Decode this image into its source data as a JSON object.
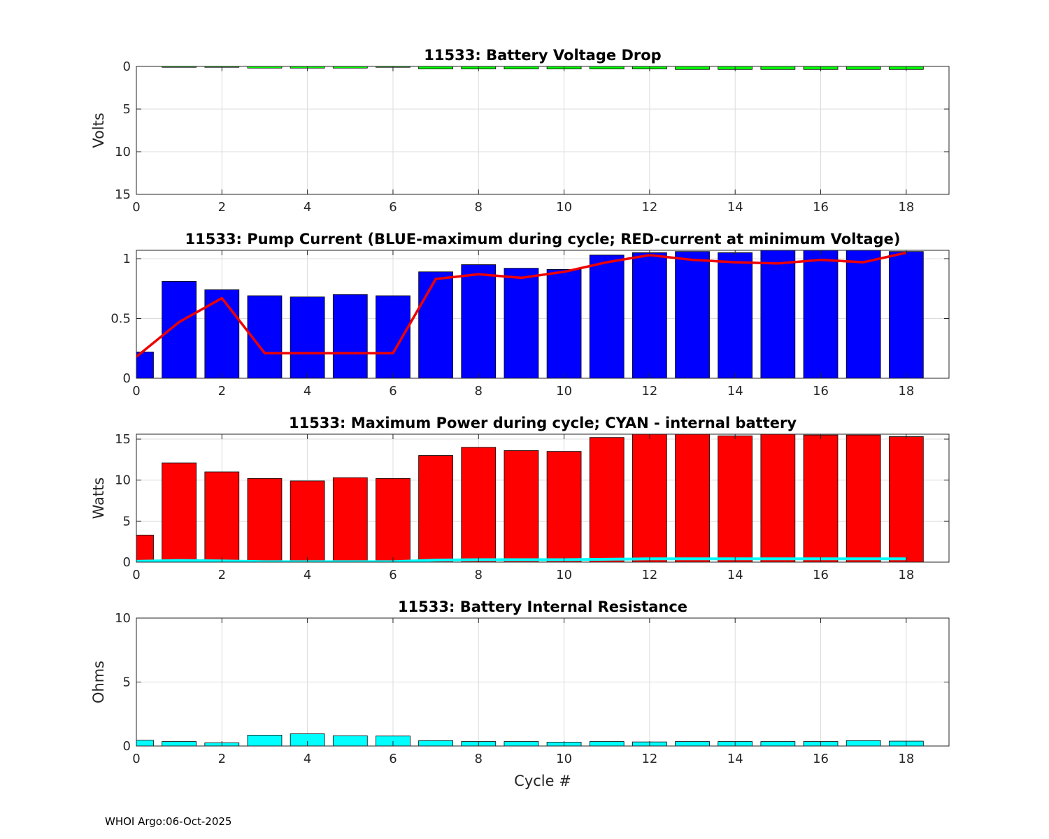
{
  "footer": "WHOI Argo:06-Oct-2025",
  "colors": {
    "green": "#00ff00",
    "blue": "#0000ff",
    "red": "#ff0000",
    "cyan": "#00ffff",
    "line_red": "#ee0000",
    "grid": "#dcdcdc",
    "edge": "#000000"
  },
  "chart_data": [
    {
      "id": "voltage",
      "type": "bar",
      "title": "11533: Battery Voltage Drop",
      "xlabel": "",
      "ylabel": "Volts",
      "xlim": [
        0,
        19
      ],
      "ylim": [
        0,
        15
      ],
      "y_reversed": true,
      "grid": true,
      "xticks": [
        "0",
        "2",
        "4",
        "6",
        "8",
        "10",
        "12",
        "14",
        "16",
        "18"
      ],
      "yticks": [
        "0",
        "5",
        "10",
        "15"
      ],
      "x": [
        0,
        1,
        2,
        3,
        4,
        5,
        6,
        7,
        8,
        9,
        10,
        11,
        12,
        13,
        14,
        15,
        16,
        17,
        18
      ],
      "series": [
        {
          "name": "Voltage drop",
          "color": "green",
          "values": [
            0,
            0.1,
            0.1,
            0.2,
            0.2,
            0.2,
            0.1,
            0.3,
            0.3,
            0.3,
            0.3,
            0.3,
            0.3,
            0.35,
            0.35,
            0.35,
            0.35,
            0.35,
            0.35
          ]
        }
      ]
    },
    {
      "id": "current",
      "type": "bar",
      "title": "11533: Pump Current (BLUE-maximum during cycle; RED-current at minimum Voltage)",
      "xlabel": "",
      "ylabel": "",
      "xlim": [
        0,
        19
      ],
      "ylim": [
        0,
        1.07
      ],
      "grid": true,
      "xticks": [
        "0",
        "2",
        "4",
        "6",
        "8",
        "10",
        "12",
        "14",
        "16",
        "18"
      ],
      "yticks": [
        "0",
        "0.5",
        "1"
      ],
      "x": [
        0,
        1,
        2,
        3,
        4,
        5,
        6,
        7,
        8,
        9,
        10,
        11,
        12,
        13,
        14,
        15,
        16,
        17,
        18
      ],
      "series": [
        {
          "name": "maximum during cycle",
          "color": "blue",
          "values": [
            0.22,
            0.81,
            0.74,
            0.69,
            0.68,
            0.7,
            0.69,
            0.89,
            0.95,
            0.92,
            0.91,
            1.03,
            1.05,
            1.06,
            1.05,
            1.07,
            1.07,
            1.07,
            1.06
          ]
        },
        {
          "name": "current at minimum Voltage",
          "color": "line_red",
          "type": "line",
          "values": [
            0.18,
            0.47,
            0.67,
            0.21,
            0.21,
            0.21,
            0.21,
            0.83,
            0.87,
            0.84,
            0.89,
            0.97,
            1.03,
            0.99,
            0.97,
            0.96,
            0.99,
            0.97,
            1.05
          ]
        }
      ]
    },
    {
      "id": "power",
      "type": "bar",
      "title": "11533: Maximum Power during cycle; CYAN - internal battery",
      "xlabel": "",
      "ylabel": "Watts",
      "xlim": [
        0,
        19
      ],
      "ylim": [
        0,
        15.6
      ],
      "grid": true,
      "xticks": [
        "0",
        "2",
        "4",
        "6",
        "8",
        "10",
        "12",
        "14",
        "16",
        "18"
      ],
      "yticks": [
        "0",
        "5",
        "10",
        "15"
      ],
      "x": [
        0,
        1,
        2,
        3,
        4,
        5,
        6,
        7,
        8,
        9,
        10,
        11,
        12,
        13,
        14,
        15,
        16,
        17,
        18
      ],
      "series": [
        {
          "name": "Maximum Power",
          "color": "red",
          "values": [
            3.3,
            12.1,
            11.0,
            10.2,
            9.9,
            10.3,
            10.2,
            13.0,
            14.0,
            13.6,
            13.5,
            15.2,
            15.6,
            15.6,
            15.4,
            15.6,
            15.5,
            15.5,
            15.3
          ]
        },
        {
          "name": "internal battery",
          "color": "cyan",
          "type": "line",
          "values": [
            0.1,
            0.2,
            0.15,
            0.05,
            0.05,
            0.05,
            0.05,
            0.25,
            0.3,
            0.3,
            0.3,
            0.35,
            0.4,
            0.4,
            0.4,
            0.4,
            0.4,
            0.4,
            0.4
          ]
        }
      ]
    },
    {
      "id": "resistance",
      "type": "bar",
      "title": "11533: Battery Internal Resistance",
      "xlabel": "Cycle #",
      "ylabel": "Ohms",
      "xlim": [
        0,
        19
      ],
      "ylim": [
        0,
        10
      ],
      "grid": true,
      "xticks": [
        "0",
        "2",
        "4",
        "6",
        "8",
        "10",
        "12",
        "14",
        "16",
        "18"
      ],
      "yticks": [
        "0",
        "5",
        "10"
      ],
      "x": [
        0,
        1,
        2,
        3,
        4,
        5,
        6,
        7,
        8,
        9,
        10,
        11,
        12,
        13,
        14,
        15,
        16,
        17,
        18
      ],
      "series": [
        {
          "name": "Internal Resistance",
          "color": "cyan",
          "values": [
            0.45,
            0.35,
            0.25,
            0.85,
            0.95,
            0.8,
            0.78,
            0.42,
            0.35,
            0.35,
            0.3,
            0.35,
            0.32,
            0.35,
            0.35,
            0.35,
            0.35,
            0.42,
            0.38
          ]
        }
      ]
    }
  ]
}
